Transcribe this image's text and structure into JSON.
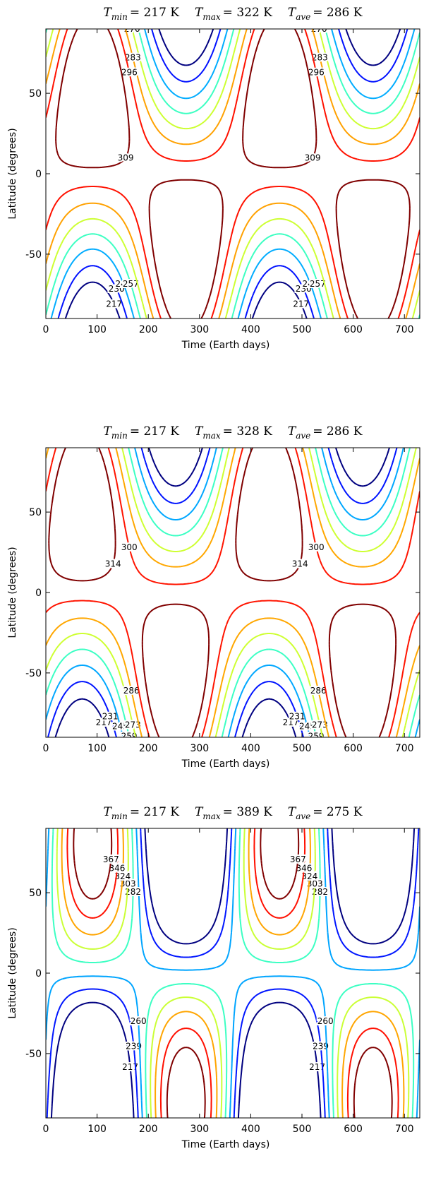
{
  "chart_data": [
    {
      "type": "contour",
      "title_parts": [
        {
          "symbol": "T",
          "subscript": "min",
          "text": "= 217 K"
        },
        {
          "symbol": "T",
          "subscript": "max",
          "text": "= 322 K"
        },
        {
          "symbol": "T",
          "subscript": "ave",
          "text": "= 286 K"
        }
      ],
      "x_label": "Time (Earth days)",
      "y_label": "Latitude (degrees)",
      "xlim": [
        0,
        730
      ],
      "xticks": [
        0,
        100,
        200,
        300,
        400,
        500,
        600,
        700
      ],
      "ylim": [
        -90,
        90
      ],
      "yticks": [
        -50,
        0,
        50
      ],
      "levels": [
        217,
        230,
        244,
        257,
        270,
        283,
        296,
        309
      ],
      "colormap": "jet"
    },
    {
      "type": "contour",
      "title_parts": [
        {
          "symbol": "T",
          "subscript": "min",
          "text": "= 217 K"
        },
        {
          "symbol": "T",
          "subscript": "max",
          "text": "= 328 K"
        },
        {
          "symbol": "T",
          "subscript": "ave",
          "text": "= 286 K"
        }
      ],
      "x_label": "Time (Earth days)",
      "y_label": "Latitude (degrees)",
      "xlim": [
        0,
        730
      ],
      "xticks": [
        0,
        100,
        200,
        300,
        400,
        500,
        600,
        700
      ],
      "ylim": [
        -90,
        90
      ],
      "yticks": [
        -50,
        0,
        50
      ],
      "levels": [
        217,
        231,
        245,
        259,
        273,
        286,
        300,
        314
      ],
      "colormap": "jet"
    },
    {
      "type": "contour",
      "title_parts": [
        {
          "symbol": "T",
          "subscript": "min",
          "text": "= 217 K"
        },
        {
          "symbol": "T",
          "subscript": "max",
          "text": "= 389 K"
        },
        {
          "symbol": "T",
          "subscript": "ave",
          "text": "= 275 K"
        }
      ],
      "x_label": "Time (Earth days)",
      "y_label": "Latitude (degrees)",
      "xlim": [
        0,
        730
      ],
      "xticks": [
        0,
        100,
        200,
        300,
        400,
        500,
        600,
        700
      ],
      "ylim": [
        -90,
        90
      ],
      "yticks": [
        -50,
        0,
        50
      ],
      "levels": [
        217,
        239,
        260,
        282,
        303,
        324,
        346,
        367
      ],
      "colormap": "jet"
    }
  ]
}
